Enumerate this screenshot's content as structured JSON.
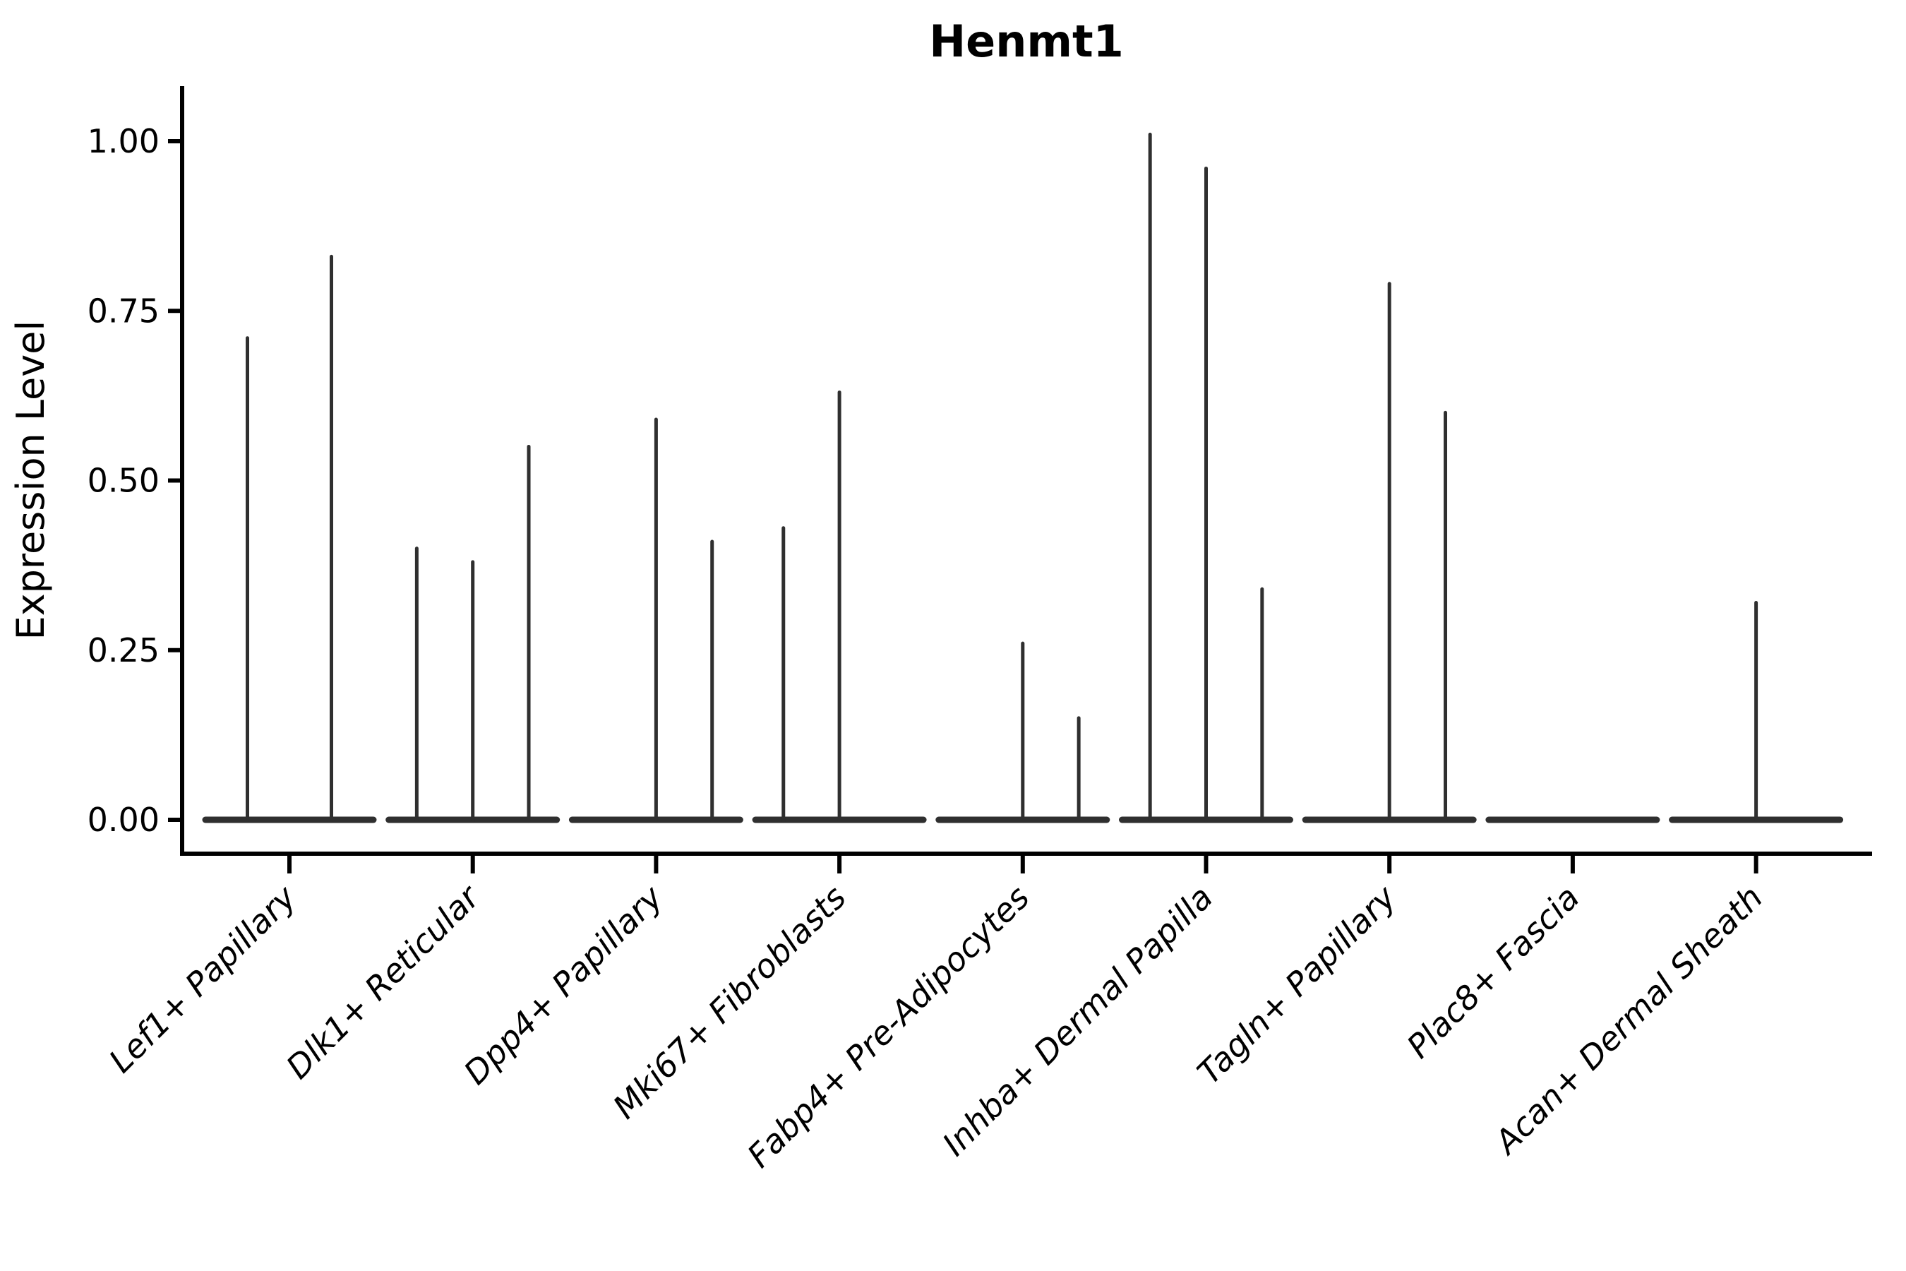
{
  "chart_data": {
    "type": "violin",
    "title": "Henmt1",
    "ylabel": "Expression Level",
    "xlabel": "",
    "ylim": [
      0,
      1.08
    ],
    "yticks": [
      0.0,
      0.25,
      0.5,
      0.75,
      1.0
    ],
    "ytick_labels": [
      "0.00",
      "0.25",
      "0.50",
      "0.75",
      "1.00"
    ],
    "grid": "off",
    "legend": "none",
    "line_color": "#2f2f2f",
    "axis_color": "#000000",
    "categories": [
      "Lef1+ Papillary",
      "Dlk1+ Reticular",
      "Dpp4+ Papillary",
      "Mki67+ Fibroblasts",
      "Fabp4+ Pre-Adipocytes",
      "Inhba+ Dermal Papilla",
      "Tagln+ Papillary",
      "Plac8+ Fascia",
      "Acan+ Dermal Sheath"
    ],
    "violins": [
      {
        "category": "Lef1+ Papillary",
        "spike_maxima": [
          0.71,
          0.83
        ]
      },
      {
        "category": "Dlk1+ Reticular",
        "spike_maxima": [
          0.4,
          0.38,
          0.55
        ]
      },
      {
        "category": "Dpp4+ Papillary",
        "spike_maxima": [
          0,
          0.59,
          0.41
        ]
      },
      {
        "category": "Mki67+ Fibroblasts",
        "spike_maxima": [
          0.43,
          0.63,
          0
        ]
      },
      {
        "category": "Fabp4+ Pre-Adipocytes",
        "spike_maxima": [
          0,
          0.26,
          0.15
        ]
      },
      {
        "category": "Inhba+ Dermal Papilla",
        "spike_maxima": [
          1.01,
          0.96,
          0.34
        ]
      },
      {
        "category": "Tagln+ Papillary",
        "spike_maxima": [
          0,
          0.79,
          0.6
        ]
      },
      {
        "category": "Plac8+ Fascia",
        "spike_maxima": [
          0,
          0,
          0
        ]
      },
      {
        "category": "Acan+ Dermal Sheath",
        "spike_maxima": [
          0,
          0.32,
          0
        ]
      }
    ]
  }
}
